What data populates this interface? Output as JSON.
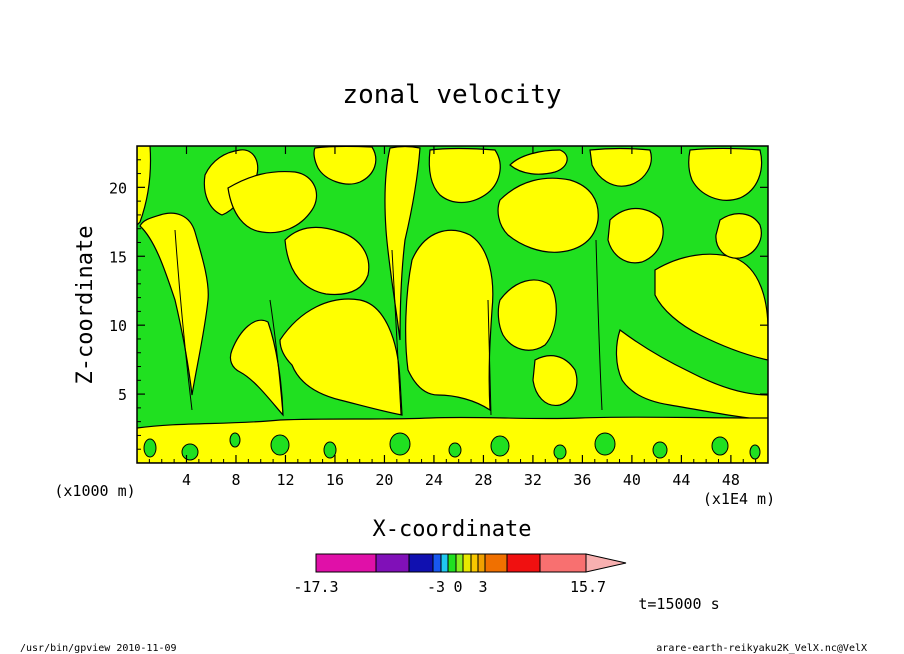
{
  "chart_data": {
    "type": "heatmap",
    "title": "zonal velocity",
    "xlabel": "X-coordinate",
    "ylabel": "Z-coordinate",
    "y_unit": "(x1000 m)",
    "x_unit": "(x1E4 m)",
    "xlim": [
      0,
      51
    ],
    "ylim": [
      0,
      23
    ],
    "x_ticks": [
      "4",
      "8",
      "12",
      "16",
      "20",
      "24",
      "28",
      "32",
      "36",
      "40",
      "44",
      "48"
    ],
    "y_ticks": [
      "5",
      "10",
      "15",
      "20"
    ],
    "time_label": "t=15000 s",
    "colorbar": {
      "tick_labels": [
        "-17.3",
        "-3",
        "0",
        "3",
        "15.7"
      ],
      "min": -17.3,
      "max": 15.7,
      "colors": [
        "#e010a8",
        "#8010b8",
        "#1010b0",
        "#1858f0",
        "#20c8f0",
        "#20e020",
        "#88ee20",
        "#e8e800",
        "#f8c800",
        "#f0a000",
        "#f07000",
        "#f01010",
        "#f87070",
        "#f8b0b0"
      ],
      "legend_position": "bottom"
    },
    "dominant_colors": {
      "negative_small": "#20e020",
      "positive_small": "#ffff00"
    }
  },
  "footer": {
    "left": "/usr/bin/gpview  2010-11-09",
    "right": "arare-earth-reikyaku2K_VelX.nc@VelX"
  }
}
